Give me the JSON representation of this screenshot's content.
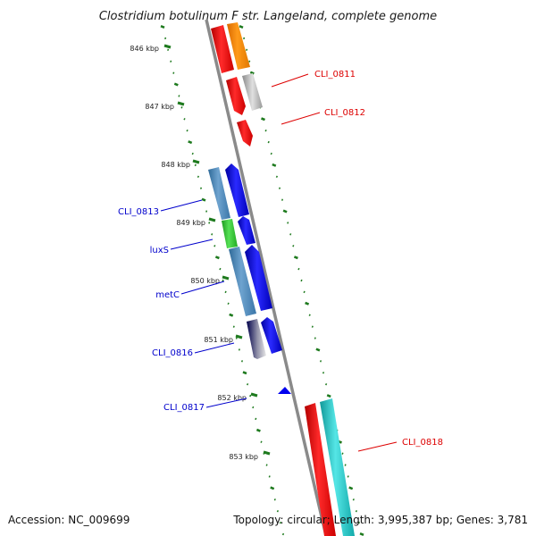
{
  "title": "Clostridium botulinum F str. Langeland, complete genome",
  "footer": {
    "accession": "Accession: NC_009699",
    "summary": "Topology: circular; Length: 3,995,387 bp; Genes: 3,781"
  },
  "scale_ticks": [
    "846 kbp",
    "847 kbp",
    "848 kbp",
    "849 kbp",
    "850 kbp",
    "851 kbp",
    "852 kbp",
    "853 kbp"
  ],
  "gene_labels_forward": [
    "CLI_0811",
    "CLI_0812",
    "CLI_0818"
  ],
  "gene_labels_reverse": [
    "CLI_0813",
    "luxS",
    "metC",
    "CLI_0816",
    "CLI_0817"
  ],
  "colors": {
    "backbone": "#888888",
    "scale_marks": "#1e7a1e",
    "forward_label": "#dd0000",
    "reverse_label": "#0000cc",
    "forward_cds": "#ff0000",
    "forward_alt": "#ff8c00",
    "forward_grey": "#bbbbbb",
    "forward_cyan": "#22cccc",
    "reverse_cds": "#0000ee",
    "reverse_steel": "#4682b4",
    "reverse_green": "#33cc33",
    "reverse_navy": "#00006e"
  }
}
